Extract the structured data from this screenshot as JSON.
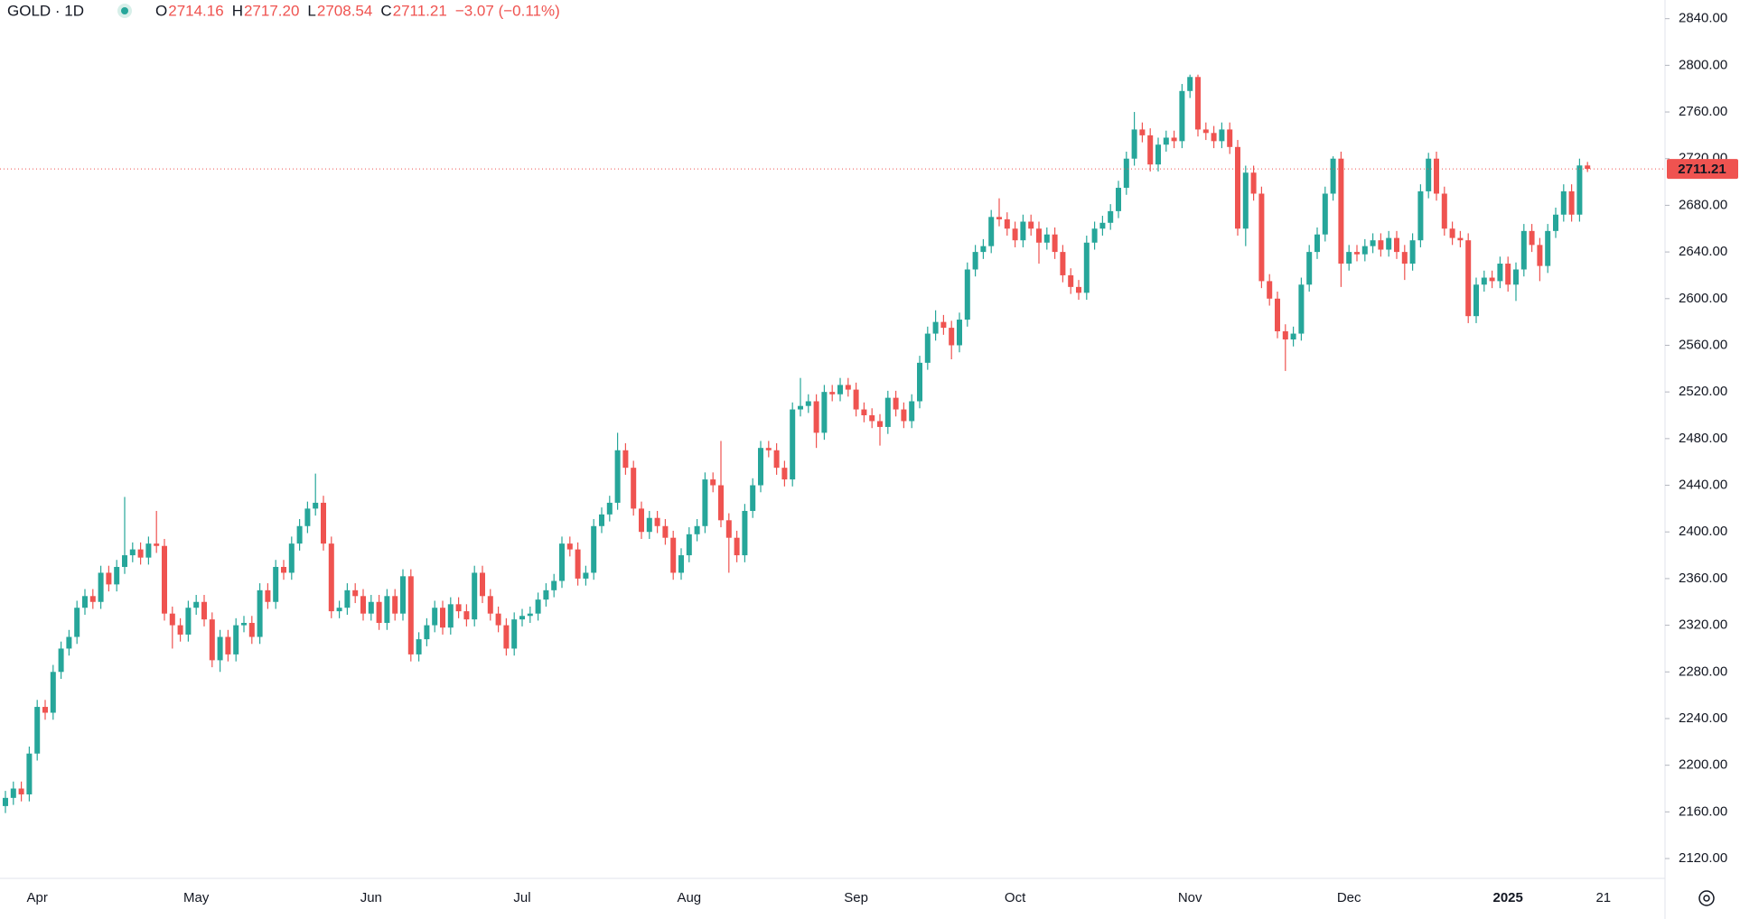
{
  "chart_data": {
    "type": "candlestick",
    "symbol": "GOLD · 1D",
    "ohlc_legend": [
      {
        "key": "O",
        "value": "2714.16"
      },
      {
        "key": "H",
        "value": "2717.20"
      },
      {
        "key": "L",
        "value": "2708.54"
      },
      {
        "key": "C",
        "value": "2711.21"
      }
    ],
    "change": "−3.07 (−0.11%)",
    "up_color": "#26a69a",
    "down_color": "#ef5350",
    "ylim": [
      2103,
      2856
    ],
    "yticks": [
      {
        "value": 2840,
        "label": "2840.00"
      },
      {
        "value": 2800,
        "label": "2800.00"
      },
      {
        "value": 2760,
        "label": "2760.00"
      },
      {
        "value": 2720,
        "label": "2720.00"
      },
      {
        "value": 2680,
        "label": "2680.00"
      },
      {
        "value": 2640,
        "label": "2640.00"
      },
      {
        "value": 2600,
        "label": "2600.00"
      },
      {
        "value": 2560,
        "label": "2560.00"
      },
      {
        "value": 2520,
        "label": "2520.00"
      },
      {
        "value": 2480,
        "label": "2480.00"
      },
      {
        "value": 2440,
        "label": "2440.00"
      },
      {
        "value": 2400,
        "label": "2400.00"
      },
      {
        "value": 2360,
        "label": "2360.00"
      },
      {
        "value": 2320,
        "label": "2320.00"
      },
      {
        "value": 2280,
        "label": "2280.00"
      },
      {
        "value": 2240,
        "label": "2240.00"
      },
      {
        "value": 2200,
        "label": "2200.00"
      },
      {
        "value": 2160,
        "label": "2160.00"
      },
      {
        "value": 2120,
        "label": "2120.00"
      }
    ],
    "categories": [
      null,
      null,
      null,
      null,
      "Apr",
      null,
      null,
      null,
      null,
      null,
      null,
      null,
      null,
      null,
      null,
      null,
      null,
      null,
      null,
      null,
      null,
      null,
      null,
      null,
      "May",
      null,
      null,
      null,
      null,
      null,
      null,
      null,
      null,
      null,
      null,
      null,
      null,
      null,
      null,
      null,
      null,
      null,
      null,
      null,
      null,
      null,
      "Jun",
      null,
      null,
      null,
      null,
      null,
      null,
      null,
      null,
      null,
      null,
      null,
      null,
      null,
      null,
      null,
      null,
      null,
      null,
      "Jul",
      null,
      null,
      null,
      null,
      null,
      null,
      null,
      null,
      null,
      null,
      null,
      null,
      null,
      null,
      null,
      null,
      null,
      null,
      null,
      null,
      "Aug",
      null,
      null,
      null,
      null,
      null,
      null,
      null,
      null,
      null,
      null,
      null,
      null,
      null,
      null,
      null,
      null,
      null,
      null,
      null,
      null,
      "Sep",
      null,
      null,
      null,
      null,
      null,
      null,
      null,
      null,
      null,
      null,
      null,
      null,
      null,
      null,
      null,
      null,
      null,
      null,
      null,
      "Oct",
      null,
      null,
      null,
      null,
      null,
      null,
      null,
      null,
      null,
      null,
      null,
      null,
      null,
      null,
      null,
      null,
      null,
      null,
      null,
      null,
      null,
      "Nov",
      null,
      null,
      null,
      null,
      null,
      null,
      null,
      null,
      null,
      null,
      null,
      null,
      null,
      null,
      null,
      null,
      null,
      null,
      null,
      "Dec",
      null,
      null,
      null,
      null,
      null,
      null,
      null,
      null,
      null,
      null,
      null,
      null,
      null,
      null,
      null,
      null,
      null,
      null,
      null,
      "2025",
      null,
      null,
      null,
      null,
      null,
      null,
      null,
      null,
      null,
      null,
      null,
      "21",
      null
    ],
    "open": [
      2165,
      2172,
      2180,
      2175,
      2210,
      2250,
      2245,
      2280,
      2300,
      2310,
      2335,
      2345,
      2340,
      2365,
      2355,
      2370,
      2380,
      2385,
      2378,
      2390,
      2388,
      2330,
      2320,
      2312,
      2335,
      2340,
      2325,
      2290,
      2310,
      2295,
      2320,
      2322,
      2310,
      2350,
      2340,
      2370,
      2365,
      2390,
      2405,
      2420,
      2425,
      2390,
      2332,
      2335,
      2350,
      2345,
      2330,
      2340,
      2322,
      2345,
      2330,
      2362,
      2295,
      2308,
      2320,
      2335,
      2318,
      2338,
      2332,
      2325,
      2365,
      2345,
      2330,
      2320,
      2300,
      2325,
      2328,
      2330,
      2342,
      2350,
      2358,
      2390,
      2385,
      2360,
      2365,
      2405,
      2415,
      2425,
      2470,
      2455,
      2420,
      2400,
      2412,
      2405,
      2395,
      2365,
      2380,
      2398,
      2405,
      2445,
      2440,
      2410,
      2395,
      2380,
      2418,
      2440,
      2472,
      2470,
      2455,
      2445,
      2505,
      2508,
      2512,
      2485,
      2520,
      2518,
      2526,
      2522,
      2505,
      2500,
      2495,
      2490,
      2515,
      2505,
      2495,
      2512,
      2545,
      2570,
      2580,
      2575,
      2560,
      2582,
      2625,
      2640,
      2645,
      2670,
      2668,
      2660,
      2650,
      2666,
      2660,
      2648,
      2655,
      2640,
      2620,
      2610,
      2605,
      2648,
      2660,
      2665,
      2675,
      2695,
      2720,
      2745,
      2740,
      2715,
      2732,
      2738,
      2735,
      2778,
      2790,
      2745,
      2742,
      2735,
      2745,
      2730,
      2660,
      2708,
      2690,
      2615,
      2600,
      2572,
      2565,
      2570,
      2612,
      2640,
      2655,
      2690,
      2720,
      2630,
      2640,
      2638,
      2645,
      2650,
      2642,
      2652,
      2640,
      2630,
      2650,
      2692,
      2720,
      2690,
      2660,
      2652,
      2650,
      2585,
      2612,
      2618,
      2615,
      2630,
      2612,
      2625,
      2658,
      2646,
      2628,
      2658,
      2672,
      2692,
      2672,
      2714.16,
      null,
      null,
      null
    ],
    "high": [
      2178,
      2186,
      2186,
      2216,
      2256,
      2256,
      2286,
      2306,
      2316,
      2341,
      2351,
      2351,
      2371,
      2371,
      2376,
      2430,
      2391,
      2391,
      2396,
      2418,
      2394,
      2336,
      2326,
      2341,
      2346,
      2346,
      2331,
      2316,
      2316,
      2326,
      2328,
      2328,
      2356,
      2356,
      2376,
      2376,
      2396,
      2411,
      2426,
      2450,
      2431,
      2396,
      2341,
      2356,
      2356,
      2351,
      2346,
      2346,
      2351,
      2351,
      2368,
      2368,
      2314,
      2326,
      2341,
      2341,
      2344,
      2344,
      2338,
      2371,
      2371,
      2351,
      2336,
      2326,
      2331,
      2334,
      2336,
      2348,
      2356,
      2364,
      2396,
      2396,
      2391,
      2371,
      2411,
      2421,
      2431,
      2485,
      2476,
      2461,
      2426,
      2418,
      2418,
      2411,
      2401,
      2386,
      2404,
      2411,
      2451,
      2451,
      2478,
      2416,
      2401,
      2424,
      2446,
      2478,
      2478,
      2476,
      2461,
      2511,
      2532,
      2518,
      2518,
      2526,
      2526,
      2532,
      2532,
      2528,
      2511,
      2506,
      2501,
      2521,
      2521,
      2511,
      2518,
      2551,
      2576,
      2590,
      2586,
      2581,
      2588,
      2631,
      2646,
      2651,
      2676,
      2686,
      2674,
      2666,
      2672,
      2672,
      2666,
      2661,
      2661,
      2646,
      2626,
      2616,
      2654,
      2666,
      2671,
      2681,
      2701,
      2726,
      2760,
      2751,
      2746,
      2738,
      2744,
      2744,
      2784,
      2792,
      2792,
      2751,
      2748,
      2751,
      2751,
      2736,
      2714,
      2714,
      2696,
      2621,
      2606,
      2578,
      2576,
      2618,
      2646,
      2661,
      2696,
      2722,
      2726,
      2646,
      2646,
      2651,
      2656,
      2656,
      2658,
      2658,
      2646,
      2656,
      2698,
      2725,
      2726,
      2696,
      2666,
      2658,
      2656,
      2618,
      2624,
      2624,
      2636,
      2636,
      2631,
      2664,
      2664,
      2652,
      2664,
      2678,
      2698,
      2698,
      2720,
      2717.2,
      null,
      null,
      null
    ],
    "low": [
      2159,
      2166,
      2169,
      2169,
      2204,
      2239,
      2239,
      2274,
      2294,
      2304,
      2329,
      2334,
      2334,
      2349,
      2349,
      2364,
      2374,
      2372,
      2372,
      2382,
      2324,
      2300,
      2306,
      2306,
      2329,
      2319,
      2284,
      2280,
      2289,
      2289,
      2314,
      2304,
      2304,
      2334,
      2334,
      2359,
      2359,
      2384,
      2399,
      2414,
      2384,
      2326,
      2326,
      2329,
      2339,
      2324,
      2324,
      2316,
      2316,
      2324,
      2324,
      2289,
      2289,
      2302,
      2314,
      2312,
      2312,
      2326,
      2319,
      2319,
      2339,
      2324,
      2314,
      2294,
      2294,
      2319,
      2322,
      2324,
      2336,
      2344,
      2352,
      2379,
      2354,
      2354,
      2359,
      2399,
      2409,
      2419,
      2449,
      2414,
      2394,
      2394,
      2399,
      2389,
      2359,
      2359,
      2374,
      2392,
      2399,
      2434,
      2404,
      2365,
      2374,
      2374,
      2412,
      2434,
      2464,
      2449,
      2439,
      2439,
      2499,
      2502,
      2472,
      2479,
      2512,
      2512,
      2516,
      2499,
      2494,
      2489,
      2474,
      2484,
      2499,
      2489,
      2489,
      2506,
      2539,
      2564,
      2569,
      2548,
      2554,
      2576,
      2619,
      2634,
      2639,
      2662,
      2654,
      2644,
      2644,
      2654,
      2630,
      2642,
      2634,
      2614,
      2604,
      2599,
      2599,
      2642,
      2654,
      2659,
      2669,
      2689,
      2714,
      2734,
      2709,
      2709,
      2726,
      2729,
      2729,
      2772,
      2739,
      2736,
      2729,
      2729,
      2724,
      2654,
      2645,
      2684,
      2609,
      2594,
      2566,
      2538,
      2559,
      2564,
      2606,
      2634,
      2649,
      2684,
      2610,
      2624,
      2632,
      2632,
      2639,
      2636,
      2636,
      2634,
      2616,
      2624,
      2644,
      2686,
      2684,
      2654,
      2646,
      2644,
      2579,
      2579,
      2606,
      2609,
      2609,
      2606,
      2598,
      2619,
      2640,
      2615,
      2622,
      2652,
      2666,
      2666,
      2666,
      2708.54,
      null,
      null,
      null
    ],
    "close": [
      2172,
      2180,
      2175,
      2210,
      2250,
      2245,
      2280,
      2300,
      2310,
      2335,
      2345,
      2340,
      2365,
      2355,
      2370,
      2380,
      2385,
      2378,
      2390,
      2388,
      2330,
      2320,
      2312,
      2335,
      2340,
      2325,
      2290,
      2310,
      2295,
      2320,
      2322,
      2310,
      2350,
      2340,
      2370,
      2365,
      2390,
      2405,
      2420,
      2425,
      2390,
      2332,
      2335,
      2350,
      2345,
      2330,
      2340,
      2322,
      2345,
      2330,
      2362,
      2295,
      2308,
      2320,
      2335,
      2318,
      2338,
      2332,
      2325,
      2365,
      2345,
      2330,
      2320,
      2300,
      2325,
      2328,
      2330,
      2342,
      2350,
      2358,
      2390,
      2385,
      2360,
      2365,
      2405,
      2415,
      2425,
      2470,
      2455,
      2420,
      2400,
      2412,
      2405,
      2395,
      2365,
      2380,
      2398,
      2405,
      2445,
      2440,
      2410,
      2395,
      2380,
      2418,
      2440,
      2472,
      2470,
      2455,
      2445,
      2505,
      2508,
      2512,
      2485,
      2520,
      2518,
      2526,
      2522,
      2505,
      2500,
      2495,
      2490,
      2515,
      2505,
      2495,
      2512,
      2545,
      2570,
      2580,
      2575,
      2560,
      2582,
      2625,
      2640,
      2645,
      2670,
      2668,
      2660,
      2650,
      2666,
      2660,
      2648,
      2655,
      2640,
      2620,
      2610,
      2605,
      2648,
      2660,
      2665,
      2675,
      2695,
      2720,
      2745,
      2740,
      2715,
      2732,
      2738,
      2735,
      2778,
      2790,
      2745,
      2742,
      2735,
      2745,
      2730,
      2660,
      2708,
      2690,
      2615,
      2600,
      2572,
      2565,
      2570,
      2612,
      2640,
      2655,
      2690,
      2720,
      2630,
      2640,
      2638,
      2645,
      2650,
      2642,
      2652,
      2640,
      2630,
      2650,
      2692,
      2720,
      2690,
      2660,
      2652,
      2650,
      2585,
      2612,
      2618,
      2615,
      2630,
      2612,
      2625,
      2658,
      2646,
      2628,
      2658,
      2672,
      2692,
      2672,
      2714.16,
      2711.21,
      null,
      null,
      null
    ]
  }
}
